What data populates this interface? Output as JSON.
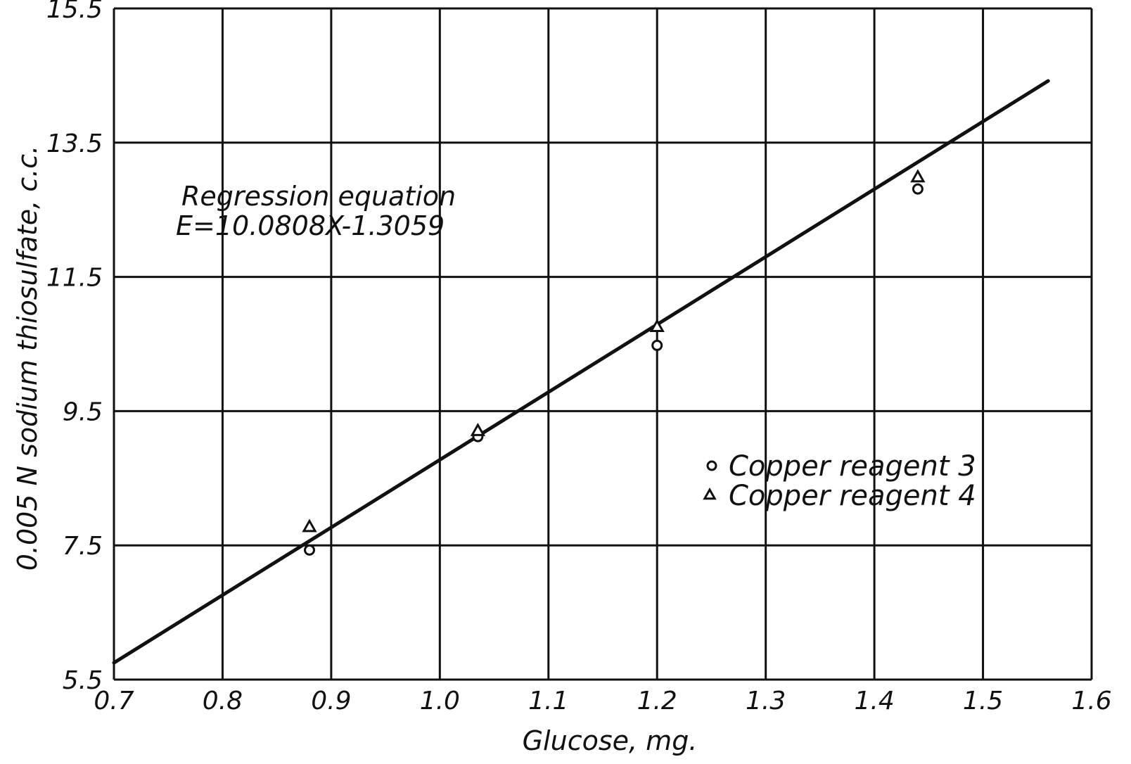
{
  "chart_data": {
    "type": "scatter",
    "title": "",
    "xlabel": "Glucose, mg.",
    "ylabel": "0.005 N sodium thiosulfate, c.c.",
    "xlim": [
      0.7,
      1.6
    ],
    "ylim": [
      5.5,
      15.5
    ],
    "x_ticks": [
      0.7,
      0.8,
      0.9,
      1.0,
      1.1,
      1.2,
      1.3,
      1.4,
      1.5,
      1.6
    ],
    "x_tick_labels": [
      "0.7",
      "0.8",
      "0.9",
      "1.0",
      "1.1",
      "1.2",
      "1.3",
      "1.4",
      "1.5",
      "1.6"
    ],
    "y_ticks": [
      5.5,
      7.5,
      9.5,
      11.5,
      13.5,
      15.5
    ],
    "y_tick_labels": [
      "5.5",
      "7.5",
      "9.5",
      "11.5",
      "13.5",
      "15.5"
    ],
    "x_gridlines": [
      0.7,
      0.8,
      0.9,
      1.0,
      1.1,
      1.2,
      1.3,
      1.4,
      1.5,
      1.6
    ],
    "y_gridlines": [
      5.5,
      7.5,
      9.5,
      11.5,
      13.5,
      15.5
    ],
    "grid": true,
    "series": [
      {
        "name": "Copper reagent 3",
        "marker": "circle",
        "points": [
          {
            "x": 0.88,
            "y": 7.43
          },
          {
            "x": 1.035,
            "y": 9.12
          },
          {
            "x": 1.2,
            "y": 10.48
          },
          {
            "x": 1.44,
            "y": 12.81
          }
        ]
      },
      {
        "name": "Copper reagent 4",
        "marker": "triangle",
        "points": [
          {
            "x": 0.88,
            "y": 7.77
          },
          {
            "x": 1.035,
            "y": 9.2
          },
          {
            "x": 1.2,
            "y": 10.75
          },
          {
            "x": 1.44,
            "y": 12.98
          }
        ]
      }
    ],
    "regression": {
      "label": "Regression equation",
      "equation": "E=10.0808X-1.3059",
      "slope": 10.0808,
      "intercept": -1.3059,
      "x_range": [
        0.7,
        1.56
      ]
    },
    "legend_position": "right",
    "colors": {
      "ink": "#111111",
      "background": "#ffffff"
    }
  }
}
